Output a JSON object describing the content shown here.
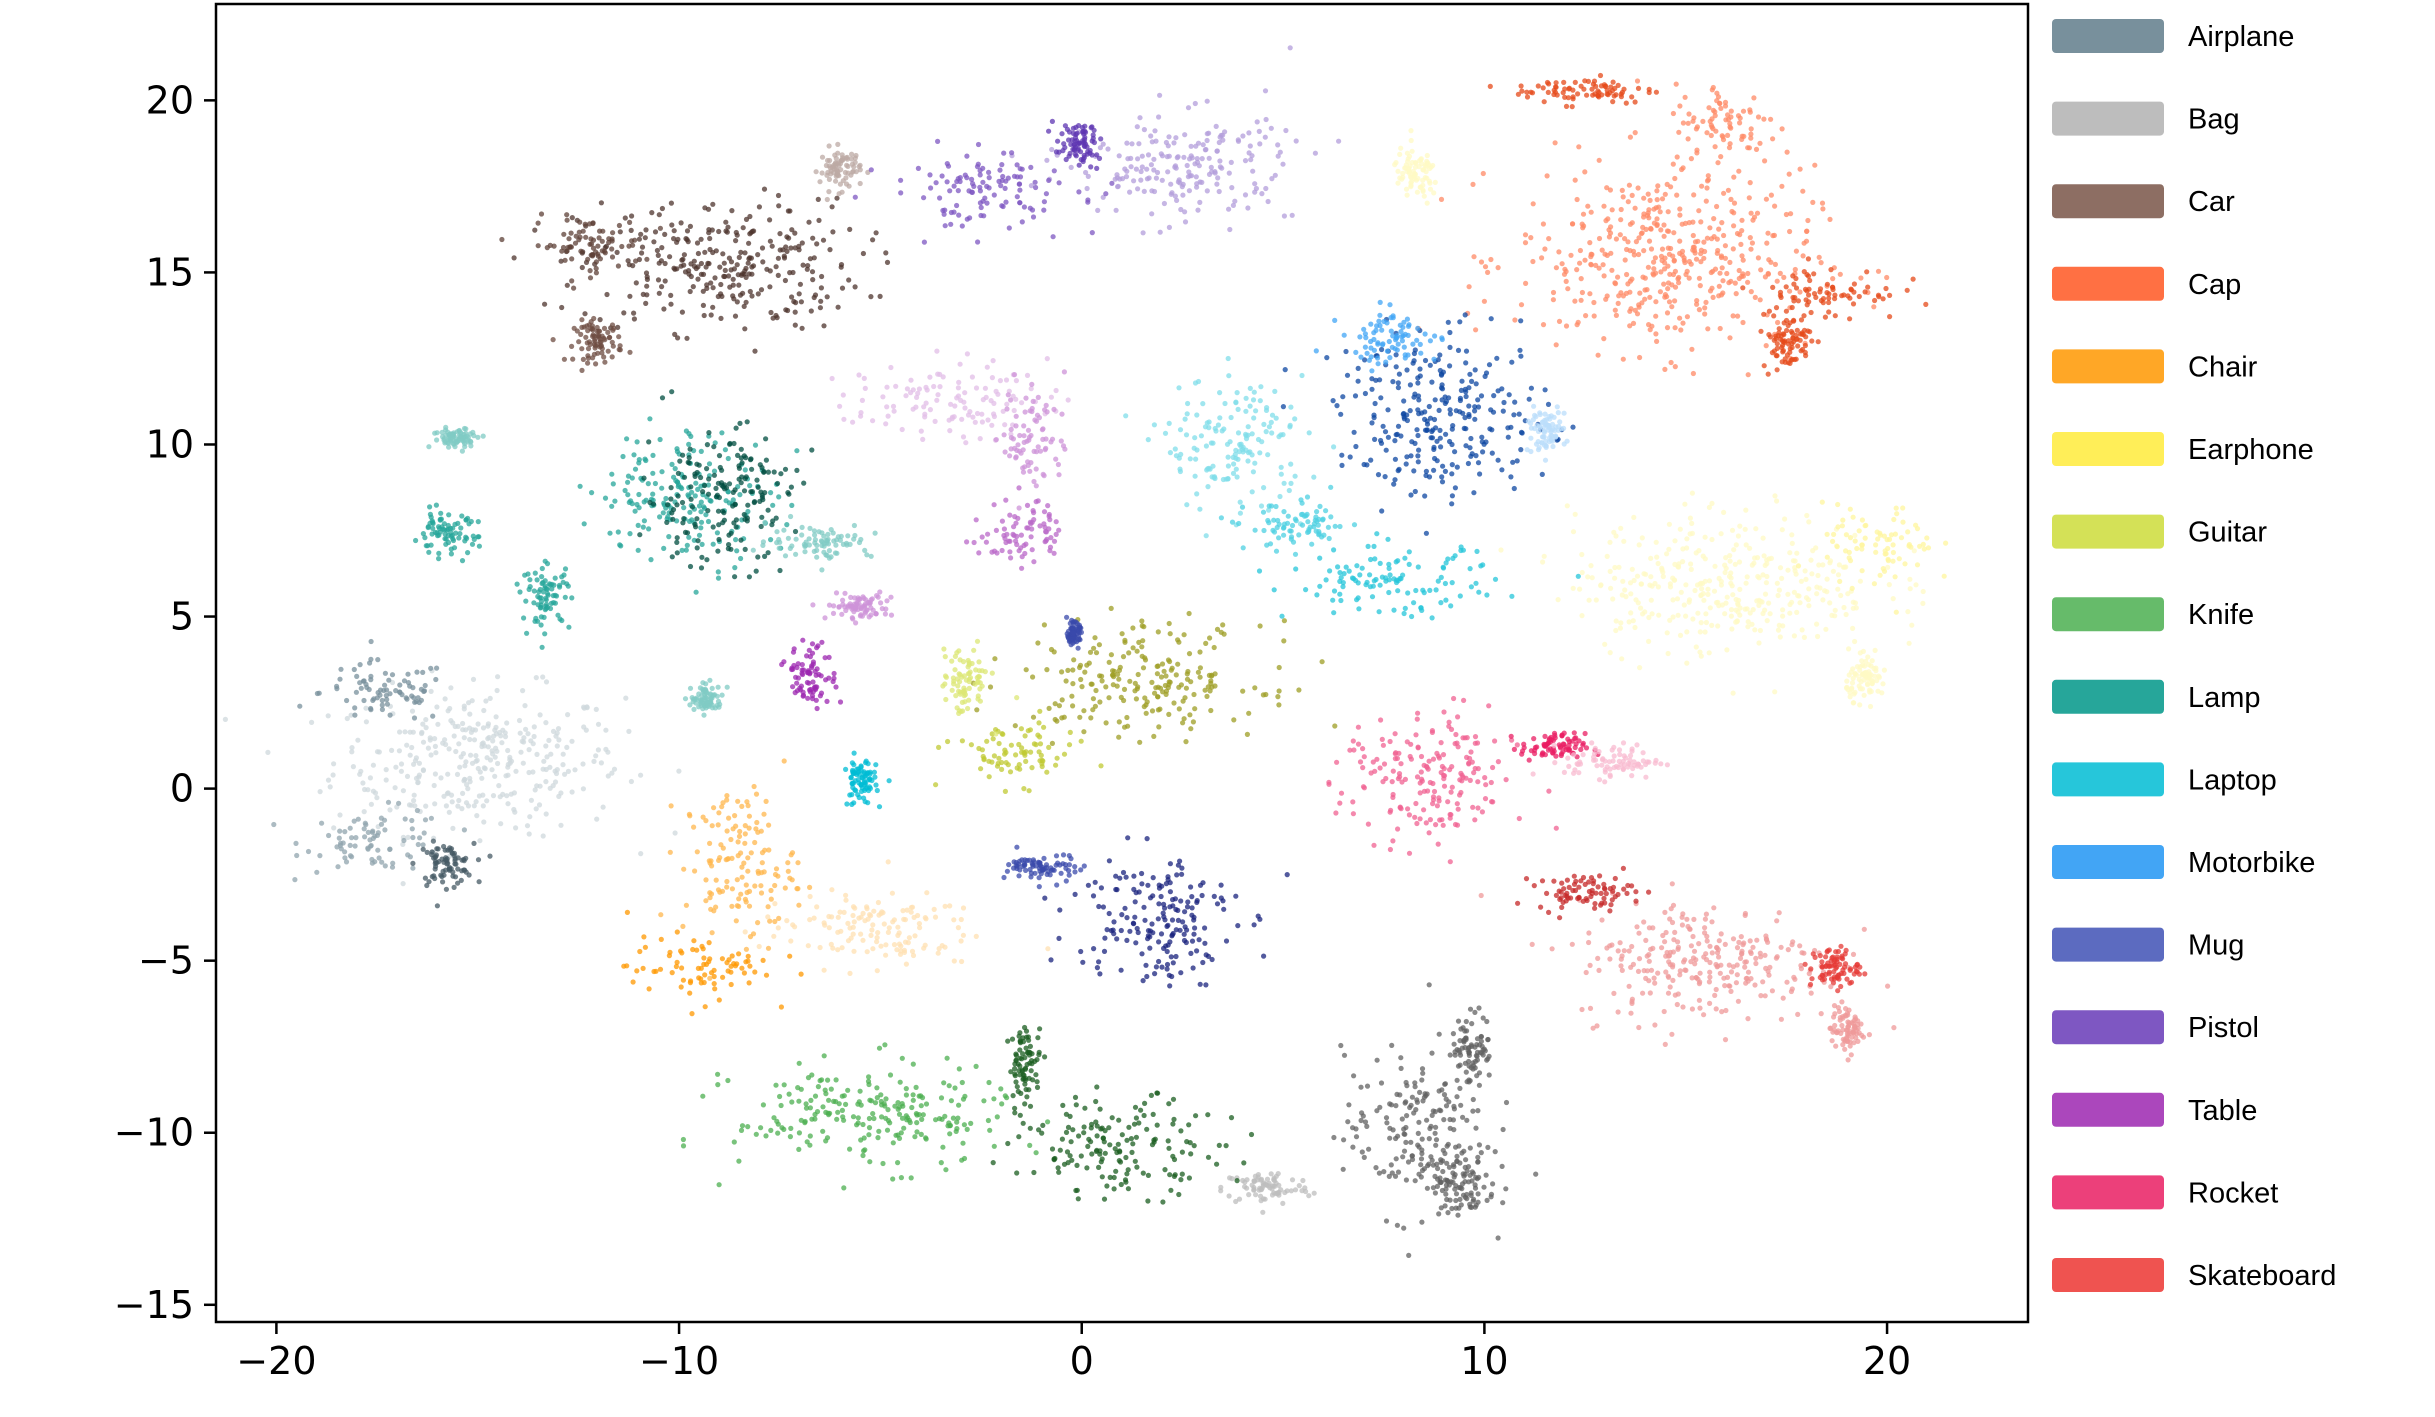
{
  "chart_data": {
    "type": "scatter",
    "title": "",
    "xlabel": "",
    "ylabel": "",
    "xlim": [
      -21.5,
      23.5
    ],
    "ylim": [
      -15.5,
      22.8
    ],
    "xticks": [
      -20,
      -10,
      0,
      10,
      20
    ],
    "yticks": [
      -15,
      -10,
      -5,
      0,
      5,
      10,
      15,
      20
    ],
    "grid": false,
    "legend_position": "outside-right",
    "series": [
      {
        "name": "Airplane",
        "color": "#78909c",
        "clusters": [
          {
            "shade": "#cfd8dc",
            "cx": -15,
            "cy": 0.8,
            "rx": 3.6,
            "ry": 2.1
          },
          {
            "shade": "#78909c",
            "cx": -17.3,
            "cy": 2.8,
            "rx": 1.6,
            "ry": 0.9
          },
          {
            "shade": "#90a4ae",
            "cx": -17.5,
            "cy": -1.5,
            "rx": 1.8,
            "ry": 0.9
          },
          {
            "shade": "#455a64",
            "cx": -15.8,
            "cy": -2.2,
            "rx": 0.7,
            "ry": 0.6
          }
        ]
      },
      {
        "name": "Bag",
        "color": "#bdbdbd",
        "clusters": [
          {
            "shade": "#bdbdbd",
            "cx": 4.6,
            "cy": -11.6,
            "rx": 1.1,
            "ry": 0.5
          }
        ]
      },
      {
        "name": "Car",
        "color": "#8d6e63",
        "clusters": [
          {
            "shade": "#4e342e",
            "cx": -9,
            "cy": 15.2,
            "rx": 3.5,
            "ry": 1.9
          },
          {
            "shade": "#5d4037",
            "cx": -12.3,
            "cy": 15.8,
            "rx": 1.4,
            "ry": 0.8
          },
          {
            "shade": "#6d4c41",
            "cx": -12,
            "cy": 13,
            "rx": 0.6,
            "ry": 0.6
          },
          {
            "shade": "#bcaaa4",
            "cx": -6,
            "cy": 18,
            "rx": 0.5,
            "ry": 0.6
          }
        ]
      },
      {
        "name": "Cap",
        "color": "#ff7043",
        "clusters": [
          {
            "shade": "#ff8a65",
            "cx": 14.5,
            "cy": 15.4,
            "rx": 3.7,
            "ry": 2.7
          },
          {
            "shade": "#e64a19",
            "cx": 12.5,
            "cy": 20.3,
            "rx": 1.8,
            "ry": 0.4
          },
          {
            "shade": "#ff8a65",
            "cx": 16,
            "cy": 19.3,
            "rx": 1.3,
            "ry": 1.2
          },
          {
            "shade": "#e64a19",
            "cx": 18.5,
            "cy": 14.4,
            "rx": 1.8,
            "ry": 0.8
          },
          {
            "shade": "#e64a19",
            "cx": 17.5,
            "cy": 13,
            "rx": 0.6,
            "ry": 0.8
          }
        ]
      },
      {
        "name": "Chair",
        "color": "#ffa726",
        "clusters": [
          {
            "shade": "#ffb74d",
            "cx": -8.5,
            "cy": -2.2,
            "rx": 1.4,
            "ry": 2.2
          },
          {
            "shade": "#ff9800",
            "cx": -9.5,
            "cy": -5.2,
            "rx": 1.8,
            "ry": 0.9
          },
          {
            "shade": "#ffe0b2",
            "cx": -5.3,
            "cy": -4.1,
            "rx": 2.7,
            "ry": 1.1
          }
        ]
      },
      {
        "name": "Earphone",
        "color": "#ffee58",
        "clusters": [
          {
            "shade": "#fff9c4",
            "cx": 16,
            "cy": 6,
            "rx": 3.8,
            "ry": 2.1
          },
          {
            "shade": "#fff59d",
            "cx": 19.8,
            "cy": 7,
            "rx": 1.4,
            "ry": 1.2
          },
          {
            "shade": "#fff9c4",
            "cx": 19.5,
            "cy": 3.2,
            "rx": 0.5,
            "ry": 0.6
          },
          {
            "shade": "#fff9c4",
            "cx": 8.3,
            "cy": 17.8,
            "rx": 0.6,
            "ry": 0.8
          }
        ]
      },
      {
        "name": "Guitar",
        "color": "#d4e157",
        "clusters": [
          {
            "shade": "#9e9d24",
            "cx": 1.5,
            "cy": 3.2,
            "rx": 3,
            "ry": 1.6
          },
          {
            "shade": "#c0ca33",
            "cx": -1.7,
            "cy": 1,
            "rx": 1.6,
            "ry": 0.9
          },
          {
            "shade": "#dce775",
            "cx": -2.9,
            "cy": 3.1,
            "rx": 0.6,
            "ry": 1
          }
        ]
      },
      {
        "name": "Knife",
        "color": "#66bb6a",
        "clusters": [
          {
            "shade": "#4caf50",
            "cx": -5.2,
            "cy": -9.5,
            "rx": 3.4,
            "ry": 1.5
          },
          {
            "shade": "#1b5e20",
            "cx": 1,
            "cy": -10.4,
            "rx": 2.5,
            "ry": 1.4
          },
          {
            "shade": "#1b5e20",
            "cx": -1.4,
            "cy": -8,
            "rx": 0.4,
            "ry": 1.1
          }
        ]
      },
      {
        "name": "Lamp",
        "color": "#26a69a",
        "clusters": [
          {
            "shade": "#26a69a",
            "cx": -9.8,
            "cy": 8.5,
            "rx": 2.2,
            "ry": 1.9
          },
          {
            "shade": "#004d40",
            "cx": -9,
            "cy": 8.5,
            "rx": 1.9,
            "ry": 2
          },
          {
            "shade": "#26a69a",
            "cx": -15.8,
            "cy": 7.4,
            "rx": 0.8,
            "ry": 0.6
          },
          {
            "shade": "#26a69a",
            "cx": -13.3,
            "cy": 5.6,
            "rx": 0.6,
            "ry": 0.9
          },
          {
            "shade": "#80cbc4",
            "cx": -15.5,
            "cy": 10.2,
            "rx": 0.6,
            "ry": 0.3
          },
          {
            "shade": "#80cbc4",
            "cx": -6.5,
            "cy": 7.2,
            "rx": 1.3,
            "ry": 0.5
          },
          {
            "shade": "#80cbc4",
            "cx": -9.3,
            "cy": 2.6,
            "rx": 0.4,
            "ry": 0.4
          }
        ]
      },
      {
        "name": "Laptop",
        "color": "#26c6da",
        "clusters": [
          {
            "shade": "#80deea",
            "cx": 3.8,
            "cy": 10,
            "rx": 1.8,
            "ry": 1.9
          },
          {
            "shade": "#26c6da",
            "cx": 7.7,
            "cy": 6,
            "rx": 2.6,
            "ry": 1
          },
          {
            "shade": "#4dd0e1",
            "cx": 5.4,
            "cy": 7.6,
            "rx": 1.3,
            "ry": 0.7
          },
          {
            "shade": "#00bcd4",
            "cx": -5.5,
            "cy": 0.2,
            "rx": 0.4,
            "ry": 0.7
          }
        ]
      },
      {
        "name": "Motorbike",
        "color": "#42a5f5",
        "clusters": [
          {
            "shade": "#0d47a1",
            "cx": 9,
            "cy": 10.8,
            "rx": 2.6,
            "ry": 2.3
          },
          {
            "shade": "#42a5f5",
            "cx": 7.7,
            "cy": 13.1,
            "rx": 1.2,
            "ry": 0.8
          },
          {
            "shade": "#bbdefb",
            "cx": 11.5,
            "cy": 10.4,
            "rx": 0.5,
            "ry": 0.6
          }
        ]
      },
      {
        "name": "Mug",
        "color": "#5c6bc0",
        "clusters": [
          {
            "shade": "#1a237e",
            "cx": 1.8,
            "cy": -3.7,
            "rx": 2,
            "ry": 2
          },
          {
            "shade": "#3949ab",
            "cx": -0.9,
            "cy": -2.3,
            "rx": 0.9,
            "ry": 0.4
          },
          {
            "shade": "#3949ab",
            "cx": -0.2,
            "cy": 4.5,
            "rx": 0.15,
            "ry": 0.3
          }
        ]
      },
      {
        "name": "Pistol",
        "color": "#7e57c2",
        "clusters": [
          {
            "shade": "#b39ddb",
            "cx": 2.5,
            "cy": 18.1,
            "rx": 2.8,
            "ry": 1.6
          },
          {
            "shade": "#7e57c2",
            "cx": -2.4,
            "cy": 17.4,
            "rx": 2.3,
            "ry": 1.1
          },
          {
            "shade": "#5e35b1",
            "cx": -0.1,
            "cy": 18.7,
            "rx": 0.6,
            "ry": 0.6
          }
        ]
      },
      {
        "name": "Table",
        "color": "#ab47bc",
        "clusters": [
          {
            "shade": "#e1bee7",
            "cx": -3.3,
            "cy": 11.3,
            "rx": 2.4,
            "ry": 1.1
          },
          {
            "shade": "#ce93d8",
            "cx": -1.2,
            "cy": 10.2,
            "rx": 0.8,
            "ry": 1.6
          },
          {
            "shade": "#ba68c8",
            "cx": -1.5,
            "cy": 7.5,
            "rx": 1,
            "ry": 1
          },
          {
            "shade": "#9c27b0",
            "cx": -6.7,
            "cy": 3.3,
            "rx": 0.6,
            "ry": 0.9
          },
          {
            "shade": "#ce93d8",
            "cx": -5.5,
            "cy": 5.3,
            "rx": 0.8,
            "ry": 0.4
          }
        ]
      },
      {
        "name": "Rocket",
        "color": "#ec407a",
        "clusters": [
          {
            "shade": "#f06292",
            "cx": 8.6,
            "cy": 0.2,
            "rx": 2.1,
            "ry": 2
          },
          {
            "shade": "#e91e63",
            "cx": 11.7,
            "cy": 1.2,
            "rx": 0.8,
            "ry": 0.4
          },
          {
            "shade": "#f8bbd0",
            "cx": 13.2,
            "cy": 0.8,
            "rx": 1.2,
            "ry": 0.5
          }
        ]
      },
      {
        "name": "Skateboard",
        "color": "#ef5350",
        "clusters": [
          {
            "shade": "#ef9a9a",
            "cx": 15.5,
            "cy": -5,
            "rx": 3.3,
            "ry": 1.8
          },
          {
            "shade": "#c62828",
            "cx": 12.5,
            "cy": -3,
            "rx": 1.2,
            "ry": 0.5
          },
          {
            "shade": "#e53935",
            "cx": 18.7,
            "cy": -5.2,
            "rx": 0.6,
            "ry": 0.6
          },
          {
            "shade": "#ef9a9a",
            "cx": 19,
            "cy": -7,
            "rx": 0.4,
            "ry": 0.7
          }
        ]
      },
      {
        "name": "",
        "color": "#616161",
        "clusters": [
          {
            "shade": "#616161",
            "cx": 8.3,
            "cy": -10,
            "rx": 1.8,
            "ry": 2.4
          },
          {
            "shade": "#616161",
            "cx": 9.7,
            "cy": -7.5,
            "rx": 0.5,
            "ry": 1
          },
          {
            "shade": "#616161",
            "cx": 9.5,
            "cy": -11.5,
            "rx": 0.8,
            "ry": 1
          }
        ]
      }
    ]
  }
}
